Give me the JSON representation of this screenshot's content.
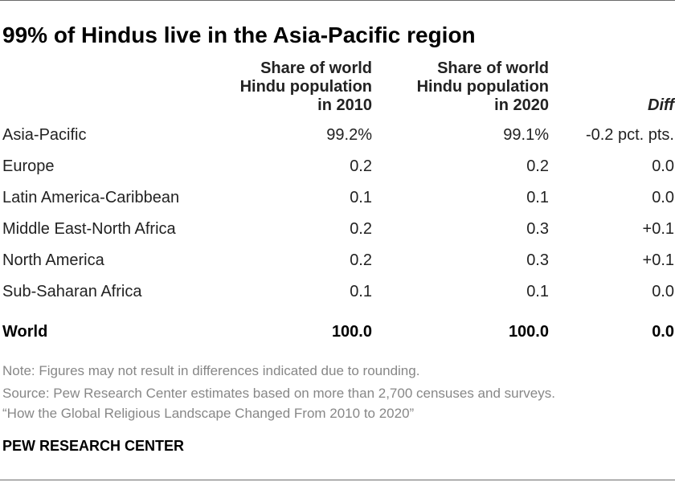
{
  "title": "99% of Hindus live in the Asia-Pacific region",
  "columns": {
    "share_2010": "Share of world\nHindu population\nin 2010",
    "share_2020": "Share of world\nHindu population\nin 2020",
    "diff": "Diff"
  },
  "rows": [
    {
      "region": "Asia-Pacific",
      "v2010": "99.2%",
      "v2020": "99.1%",
      "diff": "-0.2 pct. pts."
    },
    {
      "region": "Europe",
      "v2010": "0.2",
      "v2020": "0.2",
      "diff": "0.0"
    },
    {
      "region": "Latin America-Caribbean",
      "v2010": "0.1",
      "v2020": "0.1",
      "diff": "0.0"
    },
    {
      "region": "Middle East-North Africa",
      "v2010": "0.2",
      "v2020": "0.3",
      "diff": "+0.1"
    },
    {
      "region": "North America",
      "v2010": "0.2",
      "v2020": "0.3",
      "diff": "+0.1"
    },
    {
      "region": "Sub-Saharan Africa",
      "v2010": "0.1",
      "v2020": "0.1",
      "diff": "0.0"
    }
  ],
  "total": {
    "region": "World",
    "v2010": "100.0",
    "v2020": "100.0",
    "diff": "0.0"
  },
  "notes": {
    "note": "Note: Figures may not result in differences indicated due to rounding.",
    "source": "Source: Pew Research Center estimates based on more than 2,700 censuses and surveys.",
    "report": "“How the Global Religious Landscape Changed From 2010 to 2020”"
  },
  "brand": "PEW RESEARCH CENTER",
  "colors": {
    "text": "#222222",
    "note_text": "#878787",
    "rule": "#6b6b6b"
  },
  "chart_data": {
    "type": "table",
    "title": "99% of Hindus live in the Asia-Pacific region",
    "columns": [
      "Share of world Hindu population in 2010",
      "Share of world Hindu population in 2020",
      "Diff"
    ],
    "categories": [
      "Asia-Pacific",
      "Europe",
      "Latin America-Caribbean",
      "Middle East-North Africa",
      "North America",
      "Sub-Saharan Africa",
      "World"
    ],
    "series": [
      {
        "name": "Share of world Hindu population in 2010",
        "values": [
          99.2,
          0.2,
          0.1,
          0.2,
          0.2,
          0.1,
          100.0
        ]
      },
      {
        "name": "Share of world Hindu population in 2020",
        "values": [
          99.1,
          0.2,
          0.1,
          0.3,
          0.3,
          0.1,
          100.0
        ]
      },
      {
        "name": "Diff",
        "values": [
          -0.2,
          0.0,
          0.0,
          0.1,
          0.1,
          0.0,
          0.0
        ]
      }
    ]
  }
}
